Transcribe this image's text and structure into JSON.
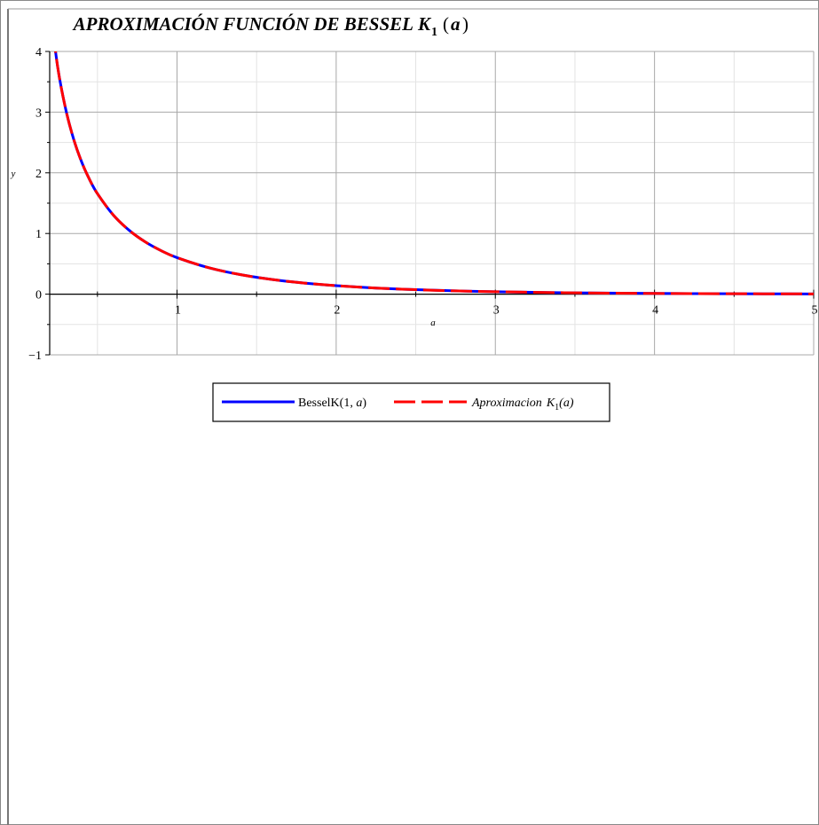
{
  "chart_data": {
    "type": "line",
    "title": "APROXIMACIÓN FUNCIÓN DE BESSEL",
    "title_symbol": "K",
    "title_subscript": "1",
    "title_open": "(",
    "title_arg": "a",
    "title_close": ")",
    "xlabel": "a",
    "ylabel": "y",
    "xlim": [
      0.2,
      5
    ],
    "ylim": [
      -1,
      4
    ],
    "x_ticks": [
      1,
      2,
      3,
      4,
      5
    ],
    "y_ticks": [
      -1,
      0,
      1,
      2,
      3,
      4
    ],
    "x_tick_labels": [
      "1",
      "2",
      "3",
      "4",
      "5"
    ],
    "y_tick_labels": [
      "−1",
      "0",
      "1",
      "2",
      "3",
      "4"
    ],
    "grid": true,
    "legend_position": "bottom",
    "series": [
      {
        "name": "BesselK(1, a)",
        "color": "#0000ff",
        "style": "solid",
        "x": [
          0.2,
          0.25,
          0.3,
          0.35,
          0.4,
          0.45,
          0.5,
          0.6,
          0.7,
          0.8,
          0.9,
          1.0,
          1.2,
          1.4,
          1.6,
          1.8,
          2.0,
          2.25,
          2.5,
          2.75,
          3.0,
          3.5,
          4.0,
          4.5,
          5.0
        ],
        "y": [
          4.776,
          3.747,
          3.056,
          2.559,
          2.184,
          1.892,
          1.656,
          1.303,
          1.051,
          0.862,
          0.717,
          0.602,
          0.435,
          0.321,
          0.241,
          0.183,
          0.14,
          0.101,
          0.074,
          0.054,
          0.04,
          0.022,
          0.012,
          0.007,
          0.004
        ]
      },
      {
        "name_prefix": "Aproximacion",
        "name_symbol": "K",
        "name_subscript": "1",
        "name_arg": "(a)",
        "color": "#ff0000",
        "style": "dashed",
        "x": [
          0.2,
          0.25,
          0.3,
          0.35,
          0.4,
          0.45,
          0.5,
          0.6,
          0.7,
          0.8,
          0.9,
          1.0,
          1.2,
          1.4,
          1.6,
          1.8,
          2.0,
          2.25,
          2.5,
          2.75,
          3.0,
          3.5,
          4.0,
          4.5,
          5.0
        ],
        "y": [
          4.776,
          3.747,
          3.056,
          2.559,
          2.184,
          1.892,
          1.656,
          1.303,
          1.051,
          0.862,
          0.717,
          0.602,
          0.435,
          0.321,
          0.241,
          0.183,
          0.14,
          0.101,
          0.074,
          0.054,
          0.04,
          0.022,
          0.012,
          0.007,
          0.004
        ]
      }
    ]
  },
  "legend": {
    "entry1_text": "BesselK(1, ",
    "entry1_arg": "a",
    "entry1_close": ")"
  }
}
